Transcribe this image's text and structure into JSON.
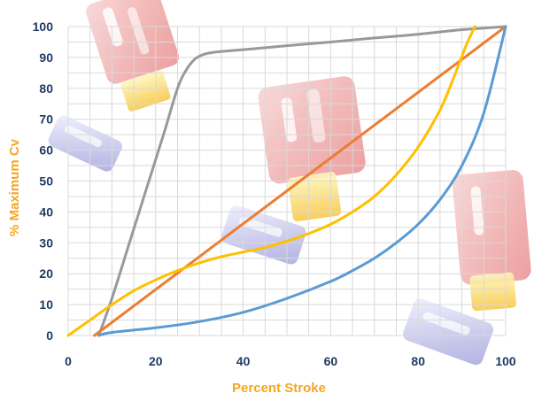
{
  "chart_data": {
    "type": "line",
    "title": "",
    "xlabel": "Percent Stroke",
    "ylabel": "% Maximum Cv",
    "xlim": [
      0,
      100
    ],
    "ylim": [
      0,
      100
    ],
    "x_ticks": [
      0,
      20,
      40,
      60,
      80,
      100
    ],
    "y_ticks": [
      0,
      10,
      20,
      30,
      40,
      50,
      60,
      70,
      80,
      90,
      100
    ],
    "grid": true,
    "legend": "none",
    "series": [
      {
        "color": "#999999",
        "x": [
          7,
          10,
          14,
          18,
          22,
          25,
          27,
          29,
          31,
          34,
          40,
          50,
          60,
          70,
          80,
          90,
          95,
          100
        ],
        "y": [
          0,
          12,
          30,
          48,
          66,
          80,
          86,
          89.5,
          91,
          91.8,
          92.5,
          93.8,
          95,
          96.3,
          97.5,
          99,
          99.5,
          100
        ]
      },
      {
        "color": "#ED7D31",
        "x": [
          6,
          100
        ],
        "y": [
          0,
          100
        ]
      },
      {
        "color": "#FFC000",
        "x": [
          0,
          5,
          10,
          15,
          20,
          25,
          30,
          35,
          40,
          45,
          50,
          55,
          60,
          65,
          70,
          75,
          80,
          85,
          88,
          91,
          93
        ],
        "y": [
          0,
          5,
          10,
          14.5,
          18,
          21,
          23.5,
          25.5,
          27,
          28.5,
          30.5,
          33,
          36,
          40,
          45,
          52,
          61,
          73,
          83,
          94,
          100
        ]
      },
      {
        "color": "#5B9BD5",
        "x": [
          7,
          10,
          20,
          30,
          40,
          50,
          60,
          65,
          70,
          75,
          80,
          85,
          90,
          95,
          100
        ],
        "y": [
          0,
          1,
          2.5,
          4.5,
          7.5,
          12,
          17.5,
          21,
          25,
          30,
          36,
          44,
          55,
          72,
          100
        ]
      }
    ]
  },
  "colors": {
    "axis_label": "#F5A623",
    "tick_label": "#1F3B63",
    "grid": "#D9D9D9"
  }
}
